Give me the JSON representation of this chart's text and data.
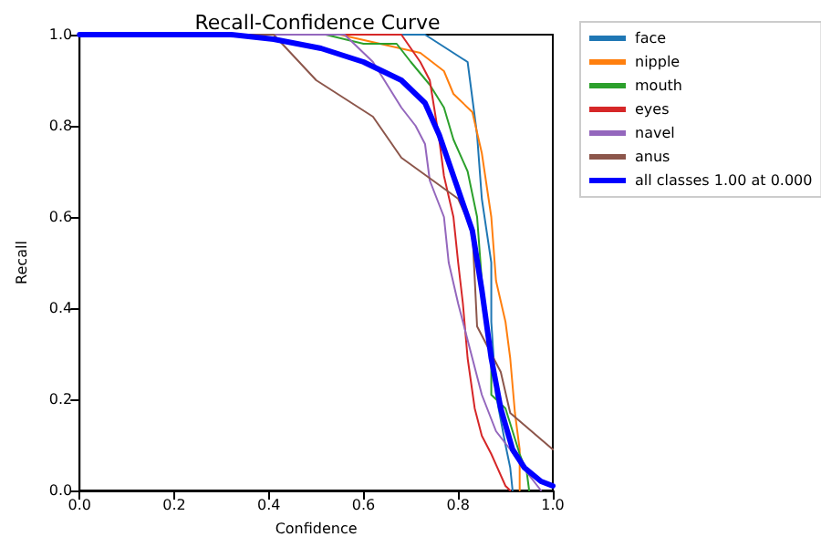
{
  "chart_data": {
    "type": "line",
    "title": "Recall-Confidence Curve",
    "xlabel": "Confidence",
    "ylabel": "Recall",
    "xlim": [
      0,
      1
    ],
    "ylim": [
      0,
      1
    ],
    "xticks": [
      {
        "value": 0,
        "label": "0.0"
      },
      {
        "value": 0.2,
        "label": "0.2"
      },
      {
        "value": 0.4,
        "label": "0.4"
      },
      {
        "value": 0.6,
        "label": "0.6"
      },
      {
        "value": 0.8,
        "label": "0.8"
      },
      {
        "value": 1,
        "label": "1.0"
      }
    ],
    "yticks": [
      {
        "value": 0,
        "label": "0.0"
      },
      {
        "value": 0.2,
        "label": "0.2"
      },
      {
        "value": 0.4,
        "label": "0.4"
      },
      {
        "value": 0.6,
        "label": "0.6"
      },
      {
        "value": 0.8,
        "label": "0.8"
      },
      {
        "value": 1,
        "label": "1.0"
      }
    ],
    "grid": false,
    "legend": "right",
    "marker": "none",
    "line_style": "solid",
    "series": [
      {
        "name": "face",
        "color": "#1f77b4",
        "x": [
          0,
          0.73,
          0.82,
          0.84,
          0.85,
          0.87,
          0.87,
          0.88,
          0.9,
          0.91,
          0.915
        ],
        "values": [
          1,
          1,
          0.94,
          0.78,
          0.64,
          0.5,
          0.37,
          0.21,
          0.1,
          0.05,
          0
        ]
      },
      {
        "name": "nipple",
        "color": "#ff7f0e",
        "x": [
          0,
          0.55,
          0.72,
          0.77,
          0.79,
          0.83,
          0.85,
          0.87,
          0.88,
          0.9,
          0.91,
          0.92,
          0.93,
          0.93
        ],
        "values": [
          1,
          1,
          0.96,
          0.92,
          0.87,
          0.83,
          0.74,
          0.6,
          0.46,
          0.37,
          0.29,
          0.17,
          0.09,
          0
        ]
      },
      {
        "name": "mouth",
        "color": "#2ca02c",
        "x": [
          0,
          0.52,
          0.6,
          0.67,
          0.7,
          0.74,
          0.77,
          0.79,
          0.82,
          0.84,
          0.85,
          0.87,
          0.87,
          0.9,
          0.93,
          0.945,
          0.95
        ],
        "values": [
          1,
          1,
          0.98,
          0.98,
          0.94,
          0.89,
          0.84,
          0.77,
          0.7,
          0.6,
          0.46,
          0.3,
          0.21,
          0.18,
          0.08,
          0.04,
          0
        ]
      },
      {
        "name": "eyes",
        "color": "#d62728",
        "x": [
          0,
          0.68,
          0.72,
          0.74,
          0.76,
          0.77,
          0.79,
          0.8,
          0.81,
          0.82,
          0.835,
          0.85,
          0.87,
          0.9,
          0.91
        ],
        "values": [
          1,
          1,
          0.94,
          0.9,
          0.77,
          0.69,
          0.6,
          0.5,
          0.41,
          0.29,
          0.18,
          0.12,
          0.08,
          0.01,
          0
        ]
      },
      {
        "name": "navel",
        "color": "#9467bd",
        "x": [
          0,
          0.56,
          0.62,
          0.65,
          0.68,
          0.71,
          0.73,
          0.74,
          0.77,
          0.78,
          0.8,
          0.83,
          0.85,
          0.88,
          0.91,
          0.945,
          0.975
        ],
        "values": [
          1,
          1,
          0.94,
          0.89,
          0.84,
          0.8,
          0.76,
          0.68,
          0.6,
          0.5,
          0.41,
          0.29,
          0.21,
          0.13,
          0.09,
          0.04,
          0
        ]
      },
      {
        "name": "anus",
        "color": "#8c564b",
        "x": [
          0,
          0.41,
          0.5,
          0.62,
          0.68,
          0.8,
          0.83,
          0.84,
          0.89,
          0.91,
          1
        ],
        "values": [
          1,
          1,
          0.9,
          0.82,
          0.73,
          0.64,
          0.57,
          0.36,
          0.26,
          0.17,
          0.09
        ]
      },
      {
        "name": "all classes 1.00 at 0.000",
        "color": "#0000ff",
        "x": [
          0,
          0.32,
          0.41,
          0.51,
          0.6,
          0.68,
          0.73,
          0.76,
          0.8,
          0.83,
          0.85,
          0.87,
          0.89,
          0.915,
          0.94,
          0.975,
          1
        ],
        "values": [
          1,
          1,
          0.99,
          0.97,
          0.94,
          0.9,
          0.85,
          0.78,
          0.66,
          0.57,
          0.44,
          0.29,
          0.18,
          0.09,
          0.05,
          0.02,
          0.01
        ]
      }
    ]
  }
}
